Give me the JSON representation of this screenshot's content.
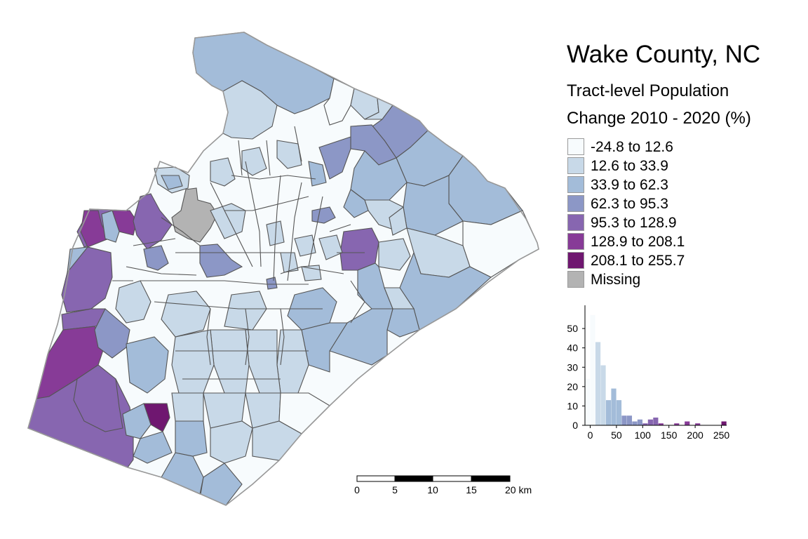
{
  "title": "Wake County, NC",
  "subtitle_line1": "Tract-level Population",
  "subtitle_line2": "Change 2010 - 2020 (%)",
  "legend": [
    {
      "label": "-24.8 to 12.6",
      "color": "#f7fbfd"
    },
    {
      "label": "12.6 to 33.9",
      "color": "#c8d9e8"
    },
    {
      "label": "33.9 to 62.3",
      "color": "#a3bcd9"
    },
    {
      "label": "62.3 to 95.3",
      "color": "#8c97c6"
    },
    {
      "label": "95.3 to 128.9",
      "color": "#8766b0"
    },
    {
      "label": "128.9 to 208.1",
      "color": "#873b97"
    },
    {
      "label": "208.1 to 255.7",
      "color": "#6f1770"
    },
    {
      "label": "Missing",
      "color": "#b3b3b3"
    }
  ],
  "chart_data": {
    "type": "bar",
    "title": "",
    "xlabel": "",
    "ylabel": "",
    "x_ticks": [
      0,
      50,
      100,
      150,
      200,
      250
    ],
    "y_ticks": [
      0,
      10,
      20,
      30,
      40,
      50
    ],
    "xlim": [
      -10,
      260
    ],
    "ylim": [
      0,
      62
    ],
    "bin_width": 10,
    "bins": [
      {
        "x": -5,
        "count": 24,
        "class": 0
      },
      {
        "x": 5,
        "count": 57,
        "class": 0
      },
      {
        "x": 15,
        "count": 43,
        "class": 1
      },
      {
        "x": 25,
        "count": 31,
        "class": 1
      },
      {
        "x": 35,
        "count": 13,
        "class": 2
      },
      {
        "x": 45,
        "count": 19,
        "class": 2
      },
      {
        "x": 55,
        "count": 13,
        "class": 2
      },
      {
        "x": 65,
        "count": 5,
        "class": 3
      },
      {
        "x": 75,
        "count": 5,
        "class": 3
      },
      {
        "x": 85,
        "count": 2,
        "class": 3
      },
      {
        "x": 95,
        "count": 3,
        "class": 3
      },
      {
        "x": 105,
        "count": 1,
        "class": 4
      },
      {
        "x": 115,
        "count": 3,
        "class": 4
      },
      {
        "x": 125,
        "count": 4,
        "class": 4
      },
      {
        "x": 135,
        "count": 1,
        "class": 5
      },
      {
        "x": 165,
        "count": 1,
        "class": 5
      },
      {
        "x": 185,
        "count": 2,
        "class": 5
      },
      {
        "x": 205,
        "count": 1,
        "class": 5
      },
      {
        "x": 255,
        "count": 2,
        "class": 6
      }
    ]
  },
  "scalebar": {
    "ticks": [
      "0",
      "5",
      "10",
      "15",
      "20 km"
    ]
  }
}
